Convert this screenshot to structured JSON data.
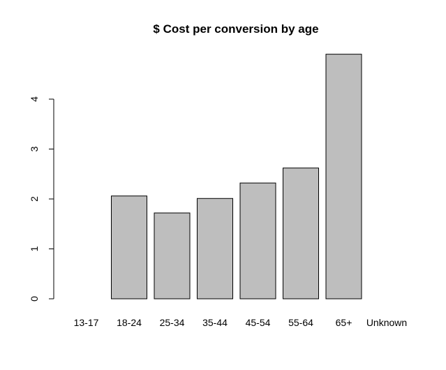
{
  "chart_data": {
    "type": "bar",
    "title": "$ Cost per conversion by age",
    "xlabel": "",
    "ylabel": "",
    "categories": [
      "13-17",
      "18-24",
      "25-34",
      "35-44",
      "45-54",
      "55-64",
      "65+",
      "Unknown"
    ],
    "values": [
      null,
      2.06,
      1.72,
      2.01,
      2.32,
      2.62,
      4.9,
      null
    ],
    "yticks": [
      "0",
      "1",
      "2",
      "3",
      "4"
    ],
    "ylim": [
      0,
      4.9
    ],
    "grid": false,
    "colors": {
      "bar_fill": "#bebebe",
      "bar_stroke": "#000000",
      "axis": "#000000"
    }
  }
}
